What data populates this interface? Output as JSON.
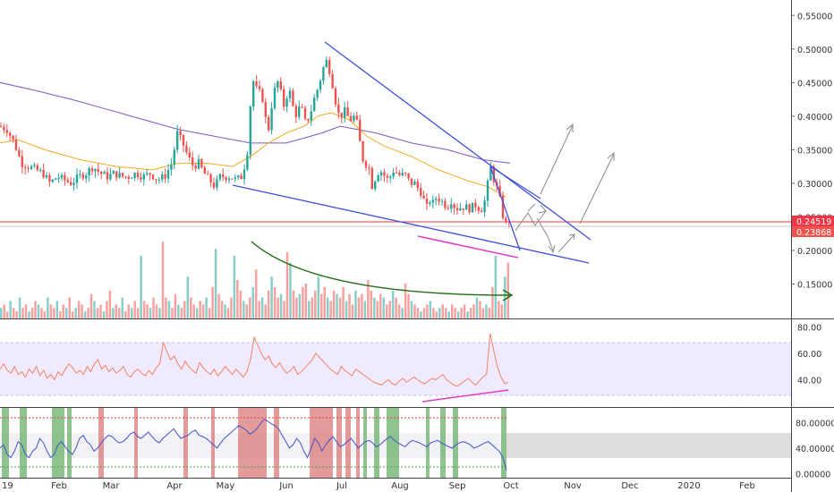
{
  "chart_data": [
    {
      "type": "candlestick",
      "name": "price",
      "y_axis": {
        "ticks": [
          "0.55000",
          "0.50000",
          "0.45000",
          "0.40000",
          "0.35000",
          "0.30000",
          "0.25000",
          "0.20000",
          "0.15000"
        ],
        "range": [
          0.12,
          0.565
        ]
      },
      "x_axis": {
        "ticks": [
          "19",
          "Feb",
          "Mar",
          "Apr",
          "May",
          "Jun",
          "Jul",
          "Aug",
          "Sep",
          "Oct",
          "Nov",
          "Dec",
          "2020",
          "Feb"
        ]
      },
      "price_labels": [
        {
          "text": "0.24519",
          "value": 0.24519,
          "color": "#f23645"
        },
        {
          "text": "0.23868",
          "value": 0.23868,
          "color": "#ef5350"
        }
      ],
      "close_path": [
        [
          0,
          0.385
        ],
        [
          8,
          0.38
        ],
        [
          16,
          0.36
        ],
        [
          24,
          0.33
        ],
        [
          32,
          0.325
        ],
        [
          40,
          0.32
        ],
        [
          48,
          0.315
        ],
        [
          56,
          0.3
        ],
        [
          64,
          0.31
        ],
        [
          72,
          0.305
        ],
        [
          80,
          0.3
        ],
        [
          88,
          0.31
        ],
        [
          96,
          0.315
        ],
        [
          104,
          0.325
        ],
        [
          112,
          0.315
        ],
        [
          120,
          0.31
        ],
        [
          128,
          0.315
        ],
        [
          136,
          0.31
        ],
        [
          144,
          0.31
        ],
        [
          152,
          0.315
        ],
        [
          160,
          0.31
        ],
        [
          168,
          0.315
        ],
        [
          176,
          0.305
        ],
        [
          184,
          0.31
        ],
        [
          192,
          0.33
        ],
        [
          198,
          0.375
        ],
        [
          204,
          0.36
        ],
        [
          210,
          0.34
        ],
        [
          216,
          0.325
        ],
        [
          222,
          0.33
        ],
        [
          228,
          0.315
        ],
        [
          234,
          0.305
        ],
        [
          240,
          0.295
        ],
        [
          246,
          0.31
        ],
        [
          252,
          0.31
        ],
        [
          258,
          0.31
        ],
        [
          264,
          0.305
        ],
        [
          270,
          0.31
        ],
        [
          276,
          0.34
        ],
        [
          280,
          0.42
        ],
        [
          284,
          0.46
        ],
        [
          288,
          0.43
        ],
        [
          292,
          0.44
        ],
        [
          296,
          0.4
        ],
        [
          300,
          0.38
        ],
        [
          304,
          0.42
        ],
        [
          308,
          0.445
        ],
        [
          312,
          0.455
        ],
        [
          316,
          0.41
        ],
        [
          320,
          0.43
        ],
        [
          324,
          0.435
        ],
        [
          328,
          0.41
        ],
        [
          332,
          0.4
        ],
        [
          336,
          0.42
        ],
        [
          340,
          0.39
        ],
        [
          344,
          0.395
        ],
        [
          348,
          0.41
        ],
        [
          352,
          0.43
        ],
        [
          356,
          0.445
        ],
        [
          360,
          0.465
        ],
        [
          364,
          0.485
        ],
        [
          368,
          0.47
        ],
        [
          372,
          0.445
        ],
        [
          376,
          0.415
        ],
        [
          380,
          0.395
        ],
        [
          384,
          0.41
        ],
        [
          388,
          0.4
        ],
        [
          392,
          0.395
        ],
        [
          396,
          0.4
        ],
        [
          400,
          0.385
        ],
        [
          404,
          0.34
        ],
        [
          408,
          0.33
        ],
        [
          412,
          0.325
        ],
        [
          416,
          0.295
        ],
        [
          420,
          0.31
        ],
        [
          424,
          0.32
        ],
        [
          428,
          0.315
        ],
        [
          432,
          0.305
        ],
        [
          436,
          0.31
        ],
        [
          440,
          0.32
        ],
        [
          444,
          0.315
        ],
        [
          448,
          0.31
        ],
        [
          452,
          0.315
        ],
        [
          456,
          0.305
        ],
        [
          460,
          0.3
        ],
        [
          464,
          0.3
        ],
        [
          468,
          0.29
        ],
        [
          472,
          0.285
        ],
        [
          476,
          0.26
        ],
        [
          480,
          0.275
        ],
        [
          484,
          0.27
        ],
        [
          488,
          0.28
        ],
        [
          492,
          0.275
        ],
        [
          496,
          0.27
        ],
        [
          500,
          0.265
        ],
        [
          504,
          0.275
        ],
        [
          508,
          0.265
        ],
        [
          512,
          0.262
        ],
        [
          516,
          0.265
        ],
        [
          520,
          0.265
        ],
        [
          524,
          0.262
        ],
        [
          528,
          0.265
        ],
        [
          532,
          0.268
        ],
        [
          536,
          0.262
        ],
        [
          540,
          0.262
        ],
        [
          544,
          0.29
        ],
        [
          548,
          0.325
        ],
        [
          552,
          0.305
        ],
        [
          556,
          0.29
        ],
        [
          560,
          0.268
        ],
        [
          564,
          0.236
        ],
        [
          568,
          0.247
        ],
        [
          572,
          0.24
        ]
      ],
      "ma_slow_path": [
        [
          0,
          0.45
        ],
        [
          40,
          0.438
        ],
        [
          80,
          0.425
        ],
        [
          120,
          0.41
        ],
        [
          160,
          0.395
        ],
        [
          200,
          0.38
        ],
        [
          240,
          0.37
        ],
        [
          280,
          0.36
        ],
        [
          320,
          0.36
        ],
        [
          360,
          0.375
        ],
        [
          380,
          0.385
        ],
        [
          420,
          0.375
        ],
        [
          460,
          0.36
        ],
        [
          500,
          0.35
        ],
        [
          540,
          0.335
        ],
        [
          570,
          0.33
        ]
      ],
      "ma_fast_path": [
        [
          0,
          0.36
        ],
        [
          20,
          0.365
        ],
        [
          50,
          0.35
        ],
        [
          90,
          0.335
        ],
        [
          130,
          0.325
        ],
        [
          170,
          0.32
        ],
        [
          200,
          0.33
        ],
        [
          230,
          0.33
        ],
        [
          260,
          0.325
        ],
        [
          280,
          0.34
        ],
        [
          300,
          0.36
        ],
        [
          320,
          0.375
        ],
        [
          340,
          0.385
        ],
        [
          355,
          0.4
        ],
        [
          370,
          0.405
        ],
        [
          390,
          0.395
        ],
        [
          410,
          0.37
        ],
        [
          430,
          0.355
        ],
        [
          460,
          0.34
        ],
        [
          490,
          0.32
        ],
        [
          520,
          0.305
        ],
        [
          545,
          0.295
        ],
        [
          565,
          0.28
        ]
      ]
    },
    {
      "type": "bar",
      "name": "volume",
      "values": [
        3,
        4,
        2,
        5,
        3,
        2,
        6,
        3,
        4,
        2,
        3,
        5,
        4,
        3,
        2,
        6,
        4,
        3,
        5,
        2,
        4,
        3,
        6,
        2,
        3,
        5,
        4,
        2,
        3,
        7,
        5,
        3,
        4,
        2,
        5,
        8,
        3,
        4,
        3,
        6,
        2,
        4,
        3,
        5,
        3,
        18,
        5,
        4,
        3,
        6,
        4,
        3,
        22,
        6,
        5,
        3,
        7,
        4,
        3,
        5,
        12,
        6,
        4,
        3,
        5,
        4,
        6,
        3,
        9,
        20,
        7,
        5,
        4,
        3,
        6,
        18,
        11,
        8,
        5,
        4,
        6,
        9,
        14,
        5,
        6,
        4,
        8,
        12,
        9,
        6,
        7,
        5,
        19,
        16,
        8,
        6,
        7,
        9,
        10,
        5,
        6,
        8,
        12,
        7,
        9,
        6,
        5,
        8,
        7,
        6,
        9,
        5,
        7,
        4,
        8,
        6,
        7,
        5,
        11,
        8,
        6,
        5,
        7,
        6,
        4,
        5,
        8,
        6,
        4,
        3,
        10,
        7,
        5,
        4,
        3,
        2,
        3,
        4,
        5,
        3,
        2,
        3,
        4,
        3,
        2,
        4,
        3,
        2,
        3,
        4,
        2,
        3,
        4,
        6,
        5,
        3,
        4,
        3,
        9,
        18,
        5,
        4,
        12,
        16
      ]
    },
    {
      "type": "line",
      "name": "rsi",
      "y_axis": {
        "ticks": [
          "80.00",
          "60.00",
          "40.00"
        ],
        "range": [
          20,
          85
        ]
      },
      "band": [
        30,
        70
      ],
      "values": [
        48,
        52,
        47,
        45,
        50,
        44,
        46,
        42,
        48,
        45,
        50,
        43,
        47,
        41,
        44,
        40,
        46,
        43,
        48,
        52,
        49,
        45,
        47,
        44,
        50,
        46,
        52,
        55,
        48,
        51,
        46,
        49,
        45,
        47,
        50,
        44,
        42,
        46,
        48,
        45,
        43,
        47,
        44,
        49,
        52,
        68,
        61,
        55,
        58,
        52,
        48,
        54,
        50,
        47,
        45,
        53,
        49,
        46,
        44,
        48,
        43,
        46,
        50,
        47,
        44,
        48,
        45,
        42,
        46,
        55,
        72,
        66,
        60,
        55,
        58,
        52,
        49,
        53,
        48,
        45,
        47,
        50,
        44,
        46,
        49,
        52,
        55,
        60,
        57,
        54,
        51,
        48,
        46,
        44,
        50,
        47,
        45,
        43,
        48,
        46,
        44,
        42,
        40,
        38,
        37,
        36,
        38,
        40,
        37,
        36,
        39,
        41,
        38,
        40,
        42,
        40,
        38,
        37,
        39,
        41,
        40,
        42,
        44,
        40,
        38,
        36,
        35,
        37,
        39,
        41,
        38,
        36,
        39,
        42,
        44,
        75,
        62,
        50,
        42,
        37,
        38
      ]
    },
    {
      "type": "line",
      "name": "stoch",
      "y_axis": {
        "ticks": [
          "80.00000",
          "40.00000",
          "0.00000"
        ],
        "range": [
          -5,
          100
        ]
      },
      "values": [
        40,
        45,
        30,
        25,
        35,
        50,
        45,
        30,
        25,
        35,
        40,
        55,
        48,
        35,
        25,
        30,
        45,
        50,
        42,
        35,
        30,
        40,
        55,
        60,
        50,
        45,
        35,
        40,
        48,
        55,
        60,
        58,
        52,
        48,
        50,
        55,
        62,
        65,
        58,
        55,
        60,
        65,
        58,
        52,
        48,
        55,
        60,
        65,
        70,
        62,
        55,
        58,
        60,
        65,
        68,
        60,
        58,
        55,
        50,
        45,
        40,
        48,
        55,
        60,
        65,
        70,
        75,
        72,
        68,
        62,
        65,
        70,
        78,
        85,
        82,
        78,
        75,
        70,
        60,
        50,
        40,
        45,
        55,
        48,
        35,
        25,
        40,
        55,
        48,
        35,
        45,
        52,
        58,
        50,
        42,
        45,
        50,
        55,
        48,
        40,
        45,
        50,
        52,
        48,
        42,
        45,
        50,
        55,
        58,
        52,
        48,
        45,
        42,
        48,
        52,
        50,
        48,
        45,
        42,
        48,
        50,
        52,
        48,
        45,
        42,
        40,
        45,
        48,
        50,
        48,
        45,
        40,
        42,
        45,
        48,
        50,
        45,
        40,
        35,
        25,
        5
      ]
    }
  ]
}
